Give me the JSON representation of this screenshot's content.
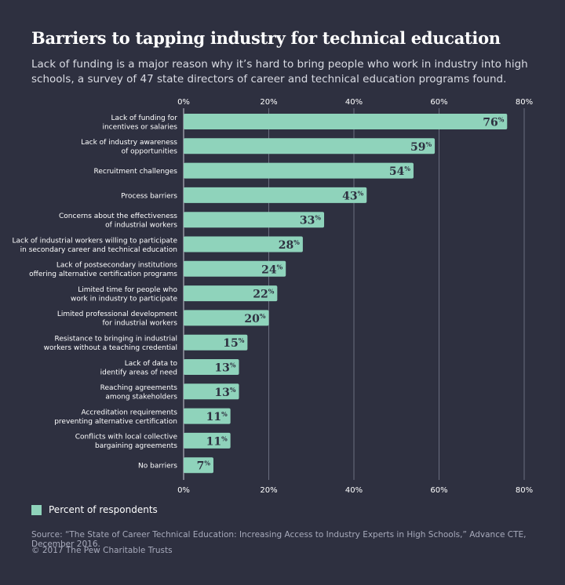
{
  "title": "Barriers to tapping industry for technical education",
  "subtitle": "Lack of funding is a major reason why it’s hard to bring people who work in industry into high schools, a survey of 47 state directors of career and technical education programs found.",
  "chart_data": {
    "type": "bar",
    "orientation": "horizontal",
    "categories": [
      [
        "Lack of funding for",
        "incentives or salaries"
      ],
      [
        "Lack of industry awareness",
        "of opportunities"
      ],
      [
        "Recruitment challenges"
      ],
      [
        "Process barriers"
      ],
      [
        "Concerns about the effectiveness",
        "of industrial workers"
      ],
      [
        "Lack of industrial workers willing to participate",
        "in secondary career and technical education"
      ],
      [
        "Lack of postsecondary institutions",
        "offering alternative certification programs"
      ],
      [
        "Limited time for people who",
        "work in industry to participate"
      ],
      [
        "Limited professional development",
        "for industrial workers"
      ],
      [
        "Resistance to bringing in industrial",
        "workers without a teaching credential"
      ],
      [
        "Lack of data to",
        "identify areas of need"
      ],
      [
        "Reaching agreements",
        "among stakeholders"
      ],
      [
        "Accreditation requirements",
        "preventing alternative certification"
      ],
      [
        "Conflicts with local collective",
        "bargaining agreements"
      ],
      [
        "No barriers"
      ]
    ],
    "series": [
      {
        "name": "Percent of respondents",
        "values": [
          76,
          59,
          54,
          43,
          33,
          28,
          24,
          22,
          20,
          15,
          13,
          13,
          11,
          11,
          7
        ]
      }
    ],
    "value_suffix": "%",
    "xlim": [
      0,
      80
    ],
    "xticks": [
      "0%",
      "20%",
      "40%",
      "60%",
      "80%"
    ],
    "tick_position": "top and bottom",
    "grid": true,
    "legend_position": "bottom-left"
  },
  "colors": {
    "background": "#2e3040",
    "bar": "#8fd3bb",
    "gridline": "#6b6e80",
    "value_label": "#2e3040"
  },
  "legend": {
    "label": "Percent of respondents"
  },
  "source": "Source: “The State of Career Technical Education: Increasing Access to Industry Experts in High Schools,” Advance CTE, December 2016.",
  "copyright": "© 2017 The Pew Charitable Trusts"
}
